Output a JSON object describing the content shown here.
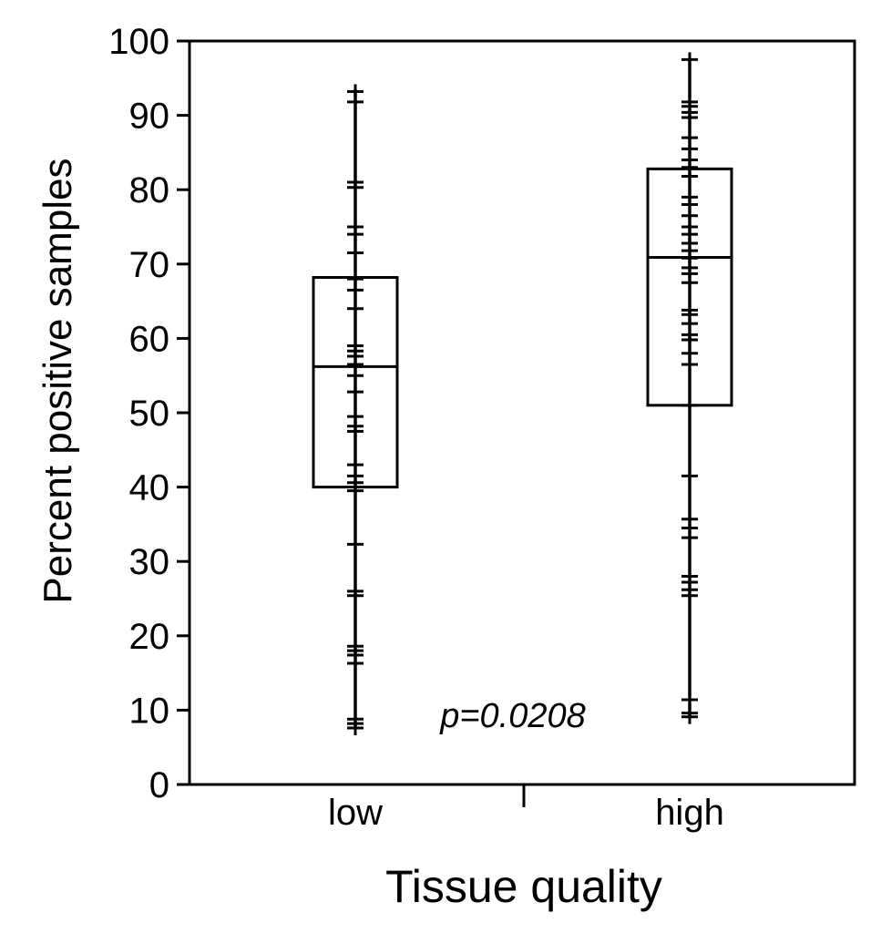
{
  "chart_data": {
    "type": "box",
    "title": "",
    "xlabel": "Tissue quality",
    "ylabel": "Percent positive samples",
    "ylim": [
      0,
      100
    ],
    "yticks": [
      0,
      10,
      20,
      30,
      40,
      50,
      60,
      70,
      80,
      90,
      100
    ],
    "categories": [
      "low",
      "high"
    ],
    "annotation": "p=0.0208",
    "grid": false,
    "boxes": [
      {
        "name": "low",
        "q1": 40,
        "median": 56.2,
        "q3": 68.2,
        "whisker_low": 7.5,
        "whisker_high": 93.5,
        "points": [
          93.2,
          91.8,
          81,
          80.3,
          75,
          74,
          71.5,
          68,
          66.5,
          64,
          59,
          58.3,
          57.6,
          56.5,
          55,
          52.8,
          49.5,
          48.2,
          47.5,
          43,
          41.5,
          40.6,
          39.5,
          32.3,
          26,
          25.4,
          18.6,
          18,
          17.4,
          16.3,
          8.8,
          8.2,
          7.6
        ]
      },
      {
        "name": "high",
        "q1": 51,
        "median": 70.9,
        "q3": 82.8,
        "whisker_low": 9,
        "whisker_high": 97.5,
        "points": [
          97.5,
          91.8,
          91.2,
          90.4,
          89.7,
          87,
          85.5,
          84,
          83,
          81.8,
          79,
          78,
          76.5,
          75,
          74,
          72.8,
          71.8,
          70.8,
          69.5,
          68.7,
          67.5,
          63.8,
          63.2,
          62,
          60.5,
          59.8,
          58,
          56.5,
          51,
          41.5,
          35.7,
          34.5,
          33.2,
          28,
          27.2,
          26.2,
          25.4,
          11.4,
          9.6,
          9.1
        ]
      }
    ]
  }
}
